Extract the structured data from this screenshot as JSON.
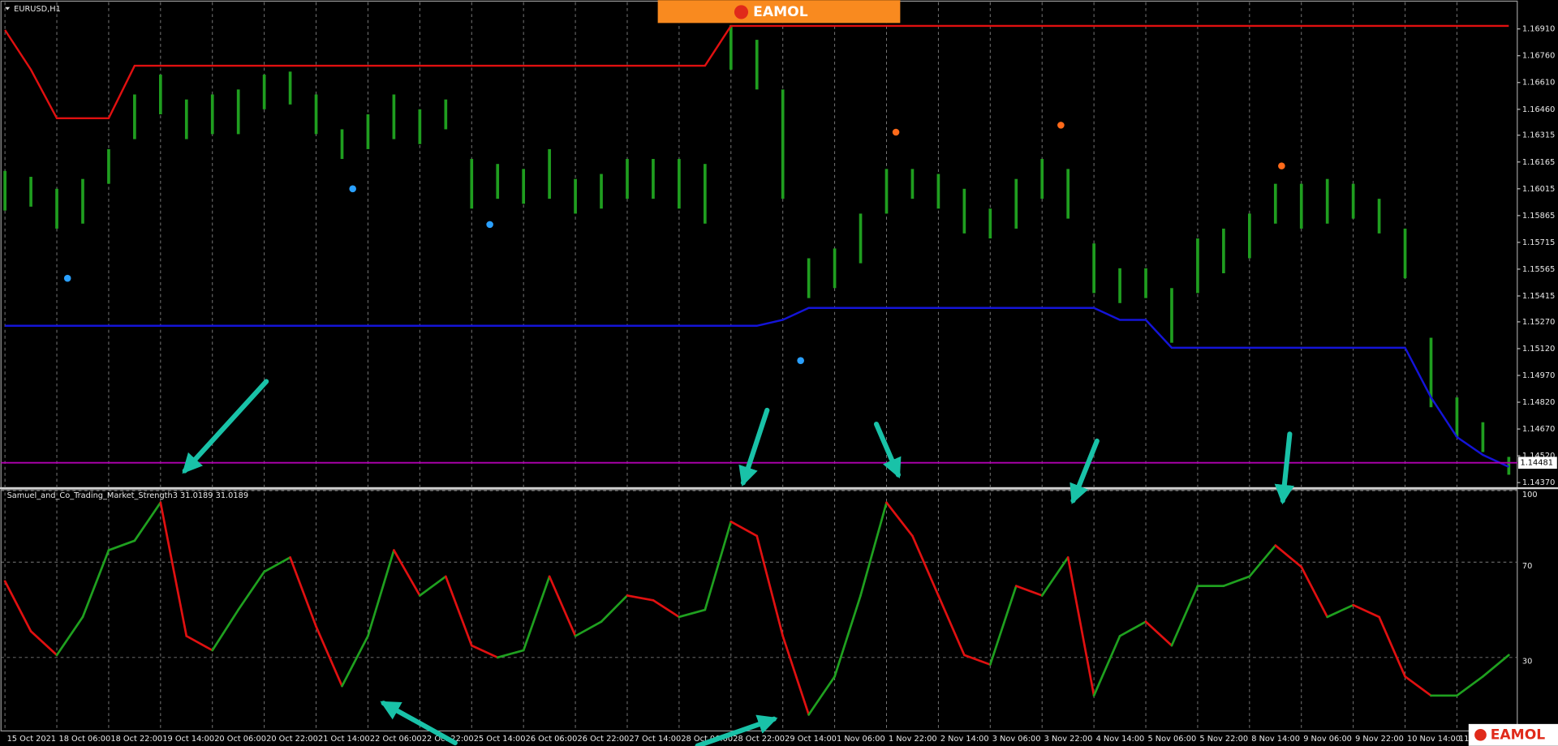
{
  "branding": {
    "top": "EAMOL",
    "bottom": "EAMOL"
  },
  "chart_data": [
    {
      "type": "ohlc",
      "title": "EURUSD,H1",
      "x": [
        0,
        8,
        16,
        24,
        32,
        40,
        48,
        56,
        64,
        72,
        80,
        88,
        96,
        104,
        112,
        120,
        128,
        136,
        144,
        152,
        160,
        168,
        176,
        184,
        192,
        200,
        208,
        216,
        224,
        232,
        240,
        248,
        256,
        264,
        272,
        280,
        288,
        296,
        304,
        312,
        320,
        328,
        336,
        344,
        352,
        360,
        368,
        376,
        384,
        392,
        400,
        408,
        416,
        424,
        432,
        440,
        448,
        456,
        464
      ],
      "high": [
        1.16115,
        1.16082,
        1.16015,
        1.1607,
        1.16237,
        1.16543,
        1.16654,
        1.16515,
        1.16543,
        1.16571,
        1.16654,
        1.16671,
        1.16543,
        1.16348,
        1.16432,
        1.16543,
        1.1646,
        1.16515,
        1.16182,
        1.16154,
        1.16126,
        1.16237,
        1.1607,
        1.16098,
        1.16182,
        1.16182,
        1.16182,
        1.16154,
        1.16932,
        1.16849,
        1.16571,
        1.15626,
        1.15681,
        1.15876,
        1.16126,
        1.16126,
        1.16098,
        1.16015,
        1.15904,
        1.1607,
        1.16182,
        1.16126,
        1.15709,
        1.1557,
        1.1557,
        1.15459,
        1.15737,
        1.15792,
        1.15876,
        1.16043,
        1.16043,
        1.1607,
        1.16043,
        1.15959,
        1.15792,
        1.15181,
        1.14847,
        1.14708,
        1.14514
      ],
      "low": [
        1.15893,
        1.15915,
        1.15792,
        1.1582,
        1.16043,
        1.16293,
        1.16432,
        1.16293,
        1.16321,
        1.16321,
        1.1646,
        1.16487,
        1.16321,
        1.16182,
        1.16237,
        1.16293,
        1.16265,
        1.16348,
        1.15904,
        1.15959,
        1.15931,
        1.15959,
        1.15876,
        1.15904,
        1.15959,
        1.15959,
        1.15904,
        1.1582,
        1.16682,
        1.16571,
        1.15959,
        1.15403,
        1.15459,
        1.15598,
        1.15876,
        1.15959,
        1.15904,
        1.15765,
        1.15737,
        1.15792,
        1.15959,
        1.15848,
        1.15431,
        1.15375,
        1.15403,
        1.15153,
        1.15431,
        1.15542,
        1.15626,
        1.1582,
        1.15792,
        1.1582,
        1.15848,
        1.15765,
        1.15514,
        1.14792,
        1.14625,
        1.14541,
        1.14414
      ],
      "color": "#1f9e1f",
      "series": [
        {
          "color": "#e01010",
          "values": [
            1.16904,
            1.16682,
            1.1641,
            1.1641,
            1.1641,
            1.16704,
            1.16704,
            1.16704,
            1.16704,
            1.16704,
            1.16704,
            1.16704,
            1.16704,
            1.16704,
            1.16704,
            1.16704,
            1.16704,
            1.16704,
            1.16704,
            1.16704,
            1.16704,
            1.16704,
            1.16704,
            1.16704,
            1.16704,
            1.16704,
            1.16704,
            1.16704,
            1.16927,
            1.16927,
            1.16927,
            1.16927,
            1.16927,
            1.16927,
            1.16927,
            1.16927,
            1.16927,
            1.16927,
            1.16927,
            1.16927,
            1.16927,
            1.16927,
            1.16927,
            1.16927,
            1.16927,
            1.16927,
            1.16927,
            1.16927,
            1.16927,
            1.16927,
            1.16927,
            1.16927,
            1.16927,
            1.16927,
            1.16927,
            1.16927,
            1.16927,
            1.16927,
            1.16927
          ]
        },
        {
          "color": "#1414d8",
          "values": [
            1.15248,
            1.15248,
            1.15248,
            1.15248,
            1.15248,
            1.15248,
            1.15248,
            1.15248,
            1.15248,
            1.15248,
            1.15248,
            1.15248,
            1.15248,
            1.15248,
            1.15248,
            1.15248,
            1.15248,
            1.15248,
            1.15248,
            1.15248,
            1.15248,
            1.15248,
            1.15248,
            1.15248,
            1.15248,
            1.15248,
            1.15248,
            1.15248,
            1.15248,
            1.15248,
            1.15281,
            1.15348,
            1.15348,
            1.15348,
            1.15348,
            1.15348,
            1.15348,
            1.15348,
            1.15348,
            1.15348,
            1.15348,
            1.15348,
            1.15348,
            1.15281,
            1.15281,
            1.15125,
            1.15125,
            1.15125,
            1.15125,
            1.15125,
            1.15125,
            1.15125,
            1.15125,
            1.15125,
            1.15125,
            1.14847,
            1.14625,
            1.14525,
            1.14458
          ]
        }
      ],
      "markers": [
        {
          "color": "#2aa0ff",
          "x": [
            19.3,
            107.3,
            149.6,
            245.5
          ],
          "values": [
            1.15514,
            1.16015,
            1.15815,
            1.15053
          ]
        },
        {
          "color": "#ff6a1a",
          "x": [
            274.9,
            325.8,
            393.9
          ],
          "values": [
            1.16332,
            1.16371,
            1.16143
          ]
        }
      ],
      "last_price": 1.14481,
      "last_price_color": "#b000b0",
      "xlim": [
        0,
        466
      ],
      "ylim": [
        1.14336,
        1.17071
      ],
      "yticks": [
        {
          "value": 1.1691,
          "label": "1.16910"
        },
        {
          "value": 1.1676,
          "label": "1.16760"
        },
        {
          "value": 1.1661,
          "label": "1.16610"
        },
        {
          "value": 1.1646,
          "label": "1.16460"
        },
        1.16315,
        1.16165,
        1.16015,
        1.15865,
        1.15715,
        1.15565,
        1.15415,
        {
          "value": 1.1527,
          "label": "1.15270"
        },
        {
          "value": 1.1512,
          "label": "1.15120"
        },
        {
          "value": 1.1497,
          "label": "1.14970"
        },
        {
          "value": 1.1482,
          "label": "1.14820"
        },
        {
          "value": 1.1467,
          "label": "1.14670"
        },
        {
          "value": 1.1452,
          "label": "1.14520"
        },
        {
          "value": 1.1437,
          "label": "1.14370"
        }
      ],
      "grid": true
    },
    {
      "type": "line",
      "title": "Samuel_and_Co_Trading_Market_Strength3 31.0189 31.0189",
      "x": [
        0,
        8,
        16,
        24,
        32,
        40,
        48,
        56,
        64,
        72,
        80,
        88,
        96,
        104,
        112,
        120,
        128,
        136,
        144,
        152,
        160,
        168,
        176,
        184,
        192,
        200,
        208,
        216,
        224,
        232,
        240,
        248,
        256,
        264,
        272,
        280,
        288,
        296,
        304,
        312,
        320,
        328,
        336,
        344,
        352,
        360,
        368,
        376,
        384,
        392,
        400,
        408,
        416,
        424,
        432,
        440,
        448,
        456,
        464
      ],
      "values": [
        62,
        41,
        31,
        47,
        75,
        79,
        95,
        39,
        33,
        50,
        66,
        72,
        43,
        18,
        39,
        75,
        56,
        64,
        35,
        30,
        33,
        64,
        39,
        45,
        56,
        54,
        47,
        50,
        87,
        81,
        39,
        6,
        22,
        56,
        95,
        81,
        56,
        31,
        27,
        60,
        56,
        72,
        14,
        39,
        45,
        35,
        60,
        60,
        64,
        77,
        68,
        47,
        52,
        47,
        22,
        14,
        14,
        22,
        31.0189
      ],
      "rising_color": "#1fa01f",
      "falling_color": "#e01010",
      "xlim": [
        0,
        466
      ],
      "xticks": [
        {
          "value": 0,
          "label": "15 Oct 2021"
        },
        {
          "value": 16,
          "label": "18 Oct 06:00"
        },
        {
          "value": 32,
          "label": "18 Oct 22:00"
        },
        {
          "value": 48,
          "label": "19 Oct 14:00"
        },
        {
          "value": 64,
          "label": "20 Oct 06:00"
        },
        {
          "value": 80,
          "label": "20 Oct 22:00"
        },
        {
          "value": 96,
          "label": "21 Oct 14:00"
        },
        {
          "value": 112,
          "label": "22 Oct 06:00"
        },
        {
          "value": 128,
          "label": "22 Oct 22:00"
        },
        {
          "value": 144,
          "label": "25 Oct 14:00"
        },
        {
          "value": 160,
          "label": "26 Oct 06:00"
        },
        {
          "value": 176,
          "label": "26 Oct 22:00"
        },
        {
          "value": 192,
          "label": "27 Oct 14:00"
        },
        {
          "value": 208,
          "label": "28 Oct 06:00"
        },
        {
          "value": 224,
          "label": "28 Oct 22:00"
        },
        {
          "value": 240,
          "label": "29 Oct 14:00"
        },
        {
          "value": 256,
          "label": "1 Nov 06:00"
        },
        {
          "value": 272,
          "label": "1 Nov 22:00"
        },
        {
          "value": 288,
          "label": "2 Nov 14:00"
        },
        {
          "value": 304,
          "label": "3 Nov 06:00"
        },
        {
          "value": 320,
          "label": "3 Nov 22:00"
        },
        {
          "value": 336,
          "label": "4 Nov 14:00"
        },
        {
          "value": 352,
          "label": "5 Nov 06:00"
        },
        {
          "value": 368,
          "label": "5 Nov 22:00"
        },
        {
          "value": 384,
          "label": "8 Nov 14:00"
        },
        {
          "value": 400,
          "label": "9 Nov 06:00"
        },
        {
          "value": 416,
          "label": "9 Nov 22:00"
        },
        {
          "value": 432,
          "label": "10 Nov 14:00"
        },
        {
          "value": 448,
          "label": "11"
        }
      ],
      "ylim": [
        0,
        100
      ],
      "yticks": [
        30,
        70,
        100
      ]
    }
  ]
}
